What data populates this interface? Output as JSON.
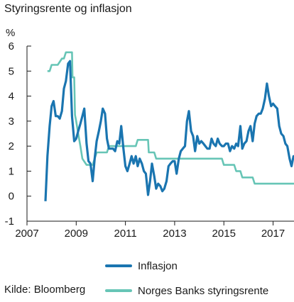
{
  "title": "Styringsrente og inflasjon",
  "source": "Kilde: Bloomberg",
  "chart_data": {
    "type": "line",
    "ylabel": "%",
    "xlim": [
      2007,
      2017.85
    ],
    "ylim": [
      -1,
      6
    ],
    "yticks": [
      -1,
      0,
      1,
      2,
      3,
      4,
      5,
      6
    ],
    "xticks": [
      2007,
      2009,
      2011,
      2013,
      2015,
      2017
    ],
    "grid": false,
    "legend_position": "bottom",
    "series": [
      {
        "name": "Inflasjon",
        "color": "#1a75b0",
        "points": [
          [
            2007.75,
            -0.2
          ],
          [
            2007.83,
            1.6
          ],
          [
            2007.92,
            2.8
          ],
          [
            2008.0,
            3.6
          ],
          [
            2008.08,
            3.8
          ],
          [
            2008.17,
            3.2
          ],
          [
            2008.25,
            3.2
          ],
          [
            2008.33,
            3.1
          ],
          [
            2008.42,
            3.4
          ],
          [
            2008.5,
            4.3
          ],
          [
            2008.58,
            4.6
          ],
          [
            2008.67,
            5.3
          ],
          [
            2008.75,
            5.4
          ],
          [
            2008.83,
            3.2
          ],
          [
            2008.92,
            2.2
          ],
          [
            2009.0,
            2.3
          ],
          [
            2009.08,
            2.6
          ],
          [
            2009.17,
            2.9
          ],
          [
            2009.25,
            3.2
          ],
          [
            2009.33,
            3.5
          ],
          [
            2009.42,
            2.1
          ],
          [
            2009.5,
            1.4
          ],
          [
            2009.58,
            1.3
          ],
          [
            2009.67,
            0.6
          ],
          [
            2009.75,
            1.5
          ],
          [
            2009.83,
            2.2
          ],
          [
            2009.92,
            2.6
          ],
          [
            2010.0,
            3.0
          ],
          [
            2010.08,
            3.5
          ],
          [
            2010.17,
            3.3
          ],
          [
            2010.25,
            2.3
          ],
          [
            2010.33,
            1.9
          ],
          [
            2010.42,
            1.9
          ],
          [
            2010.5,
            1.9
          ],
          [
            2010.58,
            1.8
          ],
          [
            2010.67,
            2.2
          ],
          [
            2010.75,
            2.1
          ],
          [
            2010.83,
            2.8
          ],
          [
            2010.92,
            1.9
          ],
          [
            2011.0,
            1.2
          ],
          [
            2011.08,
            1.0
          ],
          [
            2011.17,
            1.3
          ],
          [
            2011.25,
            1.6
          ],
          [
            2011.33,
            1.3
          ],
          [
            2011.42,
            1.6
          ],
          [
            2011.5,
            1.2
          ],
          [
            2011.58,
            1.5
          ],
          [
            2011.67,
            1.3
          ],
          [
            2011.75,
            1.0
          ],
          [
            2011.83,
            0.9
          ],
          [
            2011.92,
            0.05
          ],
          [
            2012.0,
            0.6
          ],
          [
            2012.08,
            1.3
          ],
          [
            2012.17,
            0.8
          ],
          [
            2012.25,
            0.3
          ],
          [
            2012.33,
            0.5
          ],
          [
            2012.42,
            0.4
          ],
          [
            2012.5,
            0.2
          ],
          [
            2012.58,
            0.3
          ],
          [
            2012.67,
            0.6
          ],
          [
            2012.75,
            1.2
          ],
          [
            2012.83,
            1.3
          ],
          [
            2012.92,
            1.4
          ],
          [
            2013.0,
            1.4
          ],
          [
            2013.08,
            0.9
          ],
          [
            2013.17,
            1.5
          ],
          [
            2013.25,
            1.8
          ],
          [
            2013.33,
            1.9
          ],
          [
            2013.42,
            2.0
          ],
          [
            2013.5,
            3.0
          ],
          [
            2013.58,
            3.4
          ],
          [
            2013.67,
            2.6
          ],
          [
            2013.75,
            2.4
          ],
          [
            2013.83,
            1.8
          ],
          [
            2013.92,
            2.4
          ],
          [
            2014.0,
            2.1
          ],
          [
            2014.08,
            2.2
          ],
          [
            2014.17,
            2.1
          ],
          [
            2014.25,
            2.0
          ],
          [
            2014.33,
            1.9
          ],
          [
            2014.42,
            1.9
          ],
          [
            2014.5,
            2.3
          ],
          [
            2014.58,
            2.1
          ],
          [
            2014.67,
            2.0
          ],
          [
            2014.75,
            2.3
          ],
          [
            2014.83,
            2.1
          ],
          [
            2014.92,
            2.0
          ],
          [
            2015.0,
            2.0
          ],
          [
            2015.08,
            2.1
          ],
          [
            2015.17,
            2.1
          ],
          [
            2015.25,
            1.8
          ],
          [
            2015.33,
            2.0
          ],
          [
            2015.42,
            1.9
          ],
          [
            2015.5,
            2.1
          ],
          [
            2015.58,
            2.0
          ],
          [
            2015.67,
            2.8
          ],
          [
            2015.75,
            1.9
          ],
          [
            2015.83,
            2.1
          ],
          [
            2015.92,
            2.2
          ],
          [
            2016.0,
            2.6
          ],
          [
            2016.08,
            2.8
          ],
          [
            2016.17,
            2.2
          ],
          [
            2016.25,
            2.9
          ],
          [
            2016.33,
            3.2
          ],
          [
            2016.42,
            3.3
          ],
          [
            2016.5,
            3.3
          ],
          [
            2016.58,
            3.5
          ],
          [
            2016.67,
            3.9
          ],
          [
            2016.75,
            4.5
          ],
          [
            2016.83,
            4.0
          ],
          [
            2016.92,
            3.6
          ],
          [
            2017.0,
            3.7
          ],
          [
            2017.08,
            3.6
          ],
          [
            2017.17,
            3.5
          ],
          [
            2017.25,
            2.8
          ],
          [
            2017.33,
            2.5
          ],
          [
            2017.42,
            2.4
          ],
          [
            2017.5,
            2.1
          ],
          [
            2017.58,
            2.0
          ],
          [
            2017.67,
            1.5
          ],
          [
            2017.75,
            1.2
          ],
          [
            2017.83,
            1.6
          ],
          [
            2017.92,
            1.6
          ]
        ]
      },
      {
        "name": "Norges Banks styringsrente",
        "color": "#67c5b6",
        "points": [
          [
            2007.83,
            5.0
          ],
          [
            2007.92,
            5.0
          ],
          [
            2008.0,
            5.25
          ],
          [
            2008.17,
            5.25
          ],
          [
            2008.25,
            5.25
          ],
          [
            2008.42,
            5.5
          ],
          [
            2008.5,
            5.5
          ],
          [
            2008.58,
            5.75
          ],
          [
            2008.67,
            5.75
          ],
          [
            2008.83,
            5.75
          ],
          [
            2008.85,
            4.75
          ],
          [
            2008.92,
            4.75
          ],
          [
            2008.95,
            3.25
          ],
          [
            2009.0,
            3.0
          ],
          [
            2009.08,
            2.5
          ],
          [
            2009.17,
            2.0
          ],
          [
            2009.25,
            1.5
          ],
          [
            2009.42,
            1.25
          ],
          [
            2009.58,
            1.25
          ],
          [
            2009.67,
            1.25
          ],
          [
            2009.75,
            1.5
          ],
          [
            2009.83,
            1.75
          ],
          [
            2010.25,
            1.75
          ],
          [
            2010.33,
            2.0
          ],
          [
            2011.42,
            2.0
          ],
          [
            2011.5,
            2.25
          ],
          [
            2011.92,
            2.25
          ],
          [
            2011.95,
            1.75
          ],
          [
            2012.17,
            1.75
          ],
          [
            2012.25,
            1.5
          ],
          [
            2014.92,
            1.5
          ],
          [
            2015.0,
            1.25
          ],
          [
            2015.42,
            1.25
          ],
          [
            2015.5,
            1.0
          ],
          [
            2015.67,
            1.0
          ],
          [
            2015.75,
            0.75
          ],
          [
            2016.17,
            0.75
          ],
          [
            2016.25,
            0.5
          ],
          [
            2017.92,
            0.5
          ]
        ]
      }
    ]
  }
}
